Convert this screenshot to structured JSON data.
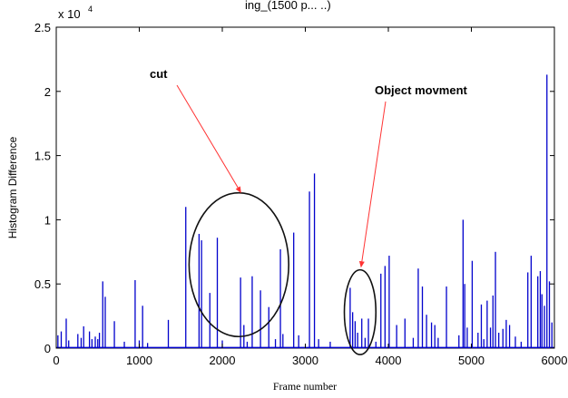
{
  "chart_data": {
    "type": "bar",
    "title_fragment": "ing_(1500 p... ..)",
    "xlabel": "Frame number",
    "ylabel": "Histogram Difference",
    "y_exponent_label": "x 10",
    "y_exponent": "4",
    "xlim": [
      0,
      6000
    ],
    "ylim": [
      0,
      2.5
    ],
    "x_ticks": [
      "0",
      "1000",
      "2000",
      "3000",
      "4000",
      "5000",
      "6000"
    ],
    "y_ticks": [
      "0",
      "0.5",
      "1",
      "1.5",
      "2",
      "2.5"
    ],
    "series_color": "#0000cc",
    "annotations": [
      {
        "text": "cut",
        "target_x": 2200,
        "target_y": 1.2
      },
      {
        "text": "Object movment",
        "target_x": 3650,
        "target_y": 0.62
      }
    ],
    "ellipses": [
      {
        "cx": 2200,
        "cy": 0.65,
        "rx": 600,
        "ry": 0.56
      },
      {
        "cx": 3660,
        "cy": 0.28,
        "rx": 190,
        "ry": 0.33
      }
    ],
    "spikes": [
      [
        20,
        0.1
      ],
      [
        60,
        0.13
      ],
      [
        120,
        0.23
      ],
      [
        150,
        0.06
      ],
      [
        260,
        0.11
      ],
      [
        300,
        0.08
      ],
      [
        330,
        0.17
      ],
      [
        400,
        0.13
      ],
      [
        430,
        0.07
      ],
      [
        470,
        0.09
      ],
      [
        500,
        0.07
      ],
      [
        520,
        0.12
      ],
      [
        560,
        0.52
      ],
      [
        590,
        0.4
      ],
      [
        700,
        0.21
      ],
      [
        820,
        0.05
      ],
      [
        950,
        0.53
      ],
      [
        1000,
        0.06
      ],
      [
        1040,
        0.33
      ],
      [
        1100,
        0.04
      ],
      [
        1350,
        0.22
      ],
      [
        1560,
        1.1
      ],
      [
        1720,
        0.89
      ],
      [
        1750,
        0.84
      ],
      [
        1850,
        0.43
      ],
      [
        1940,
        0.86
      ],
      [
        2000,
        0.06
      ],
      [
        2220,
        0.55
      ],
      [
        2260,
        0.18
      ],
      [
        2300,
        0.05
      ],
      [
        2360,
        0.56
      ],
      [
        2460,
        0.45
      ],
      [
        2560,
        0.32
      ],
      [
        2640,
        0.07
      ],
      [
        2700,
        0.77
      ],
      [
        2730,
        0.11
      ],
      [
        2860,
        0.9
      ],
      [
        2920,
        0.1
      ],
      [
        3050,
        1.22
      ],
      [
        3110,
        1.36
      ],
      [
        3160,
        0.07
      ],
      [
        3300,
        0.05
      ],
      [
        3540,
        0.47
      ],
      [
        3570,
        0.28
      ],
      [
        3600,
        0.21
      ],
      [
        3630,
        0.12
      ],
      [
        3680,
        0.23
      ],
      [
        3720,
        0.08
      ],
      [
        3760,
        0.23
      ],
      [
        3850,
        0.05
      ],
      [
        3910,
        0.58
      ],
      [
        3960,
        0.64
      ],
      [
        4010,
        0.72
      ],
      [
        4100,
        0.18
      ],
      [
        4200,
        0.23
      ],
      [
        4300,
        0.08
      ],
      [
        4360,
        0.62
      ],
      [
        4410,
        0.48
      ],
      [
        4460,
        0.26
      ],
      [
        4520,
        0.2
      ],
      [
        4560,
        0.18
      ],
      [
        4600,
        0.08
      ],
      [
        4700,
        0.48
      ],
      [
        4850,
        0.1
      ],
      [
        4900,
        1.0
      ],
      [
        4920,
        0.5
      ],
      [
        4950,
        0.16
      ],
      [
        5010,
        0.68
      ],
      [
        5080,
        0.12
      ],
      [
        5120,
        0.34
      ],
      [
        5150,
        0.07
      ],
      [
        5190,
        0.37
      ],
      [
        5230,
        0.16
      ],
      [
        5260,
        0.41
      ],
      [
        5290,
        0.75
      ],
      [
        5330,
        0.12
      ],
      [
        5380,
        0.15
      ],
      [
        5420,
        0.22
      ],
      [
        5460,
        0.18
      ],
      [
        5530,
        0.09
      ],
      [
        5600,
        0.05
      ],
      [
        5680,
        0.59
      ],
      [
        5720,
        0.72
      ],
      [
        5800,
        0.56
      ],
      [
        5830,
        0.6
      ],
      [
        5850,
        0.42
      ],
      [
        5880,
        0.33
      ],
      [
        5910,
        2.13
      ],
      [
        5940,
        0.52
      ],
      [
        5970,
        0.2
      ]
    ]
  }
}
